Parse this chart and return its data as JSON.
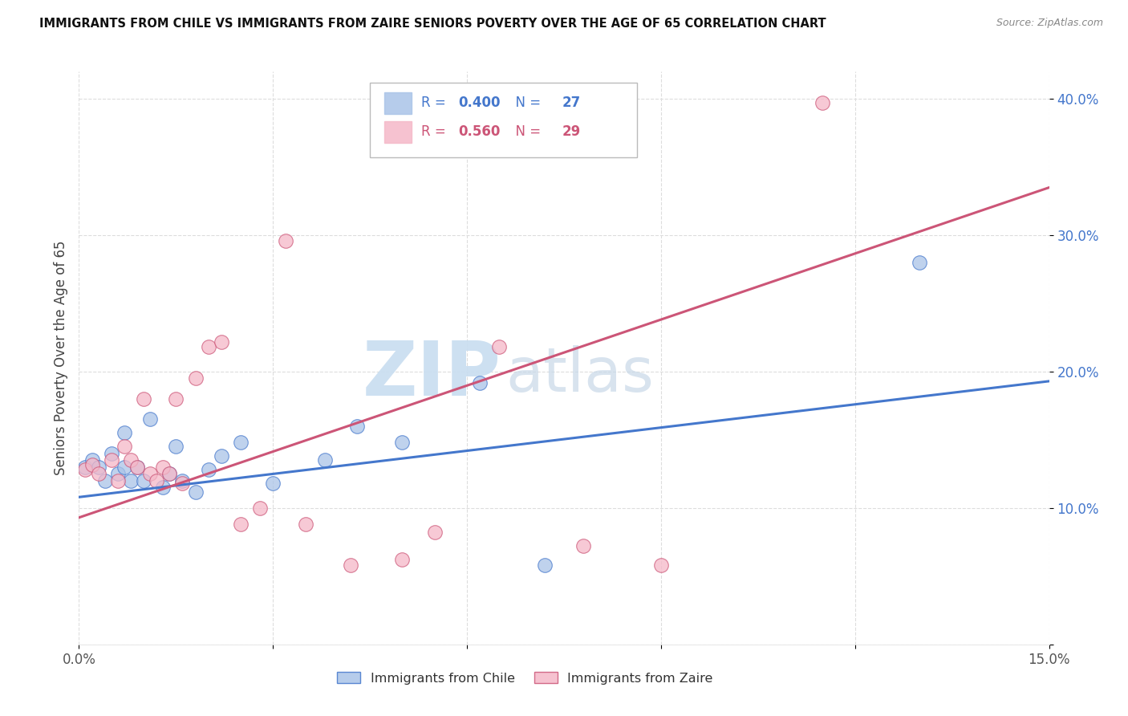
{
  "title": "IMMIGRANTS FROM CHILE VS IMMIGRANTS FROM ZAIRE SENIORS POVERTY OVER THE AGE OF 65 CORRELATION CHART",
  "source": "Source: ZipAtlas.com",
  "ylabel": "Seniors Poverty Over the Age of 65",
  "xlim": [
    0.0,
    0.15
  ],
  "ylim": [
    0.0,
    0.42
  ],
  "xticks": [
    0.0,
    0.03,
    0.06,
    0.09,
    0.12,
    0.15
  ],
  "yticks": [
    0.0,
    0.1,
    0.2,
    0.3,
    0.4
  ],
  "ytick_labels": [
    "",
    "10.0%",
    "20.0%",
    "30.0%",
    "40.0%"
  ],
  "xtick_labels": [
    "0.0%",
    "",
    "",
    "",
    "",
    "15.0%"
  ],
  "chile_R": 0.4,
  "chile_N": 27,
  "zaire_R": 0.56,
  "zaire_N": 29,
  "chile_color": "#aac4e8",
  "zaire_color": "#f5b8c8",
  "chile_line_color": "#4477cc",
  "zaire_line_color": "#cc5577",
  "watermark_zip": "ZIP",
  "watermark_atlas": "atlas",
  "chile_x": [
    0.001,
    0.002,
    0.003,
    0.004,
    0.005,
    0.006,
    0.007,
    0.007,
    0.008,
    0.009,
    0.01,
    0.011,
    0.013,
    0.014,
    0.015,
    0.016,
    0.018,
    0.02,
    0.022,
    0.025,
    0.03,
    0.038,
    0.043,
    0.05,
    0.062,
    0.072,
    0.13
  ],
  "chile_y": [
    0.13,
    0.135,
    0.13,
    0.12,
    0.14,
    0.125,
    0.155,
    0.13,
    0.12,
    0.13,
    0.12,
    0.165,
    0.115,
    0.125,
    0.145,
    0.12,
    0.112,
    0.128,
    0.138,
    0.148,
    0.118,
    0.135,
    0.16,
    0.148,
    0.192,
    0.058,
    0.28
  ],
  "zaire_x": [
    0.001,
    0.002,
    0.003,
    0.005,
    0.006,
    0.007,
    0.008,
    0.009,
    0.01,
    0.011,
    0.012,
    0.013,
    0.014,
    0.015,
    0.016,
    0.018,
    0.02,
    0.022,
    0.025,
    0.028,
    0.032,
    0.035,
    0.042,
    0.05,
    0.055,
    0.065,
    0.078,
    0.09,
    0.115
  ],
  "zaire_y": [
    0.128,
    0.132,
    0.125,
    0.135,
    0.12,
    0.145,
    0.135,
    0.13,
    0.18,
    0.125,
    0.12,
    0.13,
    0.125,
    0.18,
    0.118,
    0.195,
    0.218,
    0.222,
    0.088,
    0.1,
    0.296,
    0.088,
    0.058,
    0.062,
    0.082,
    0.218,
    0.072,
    0.058,
    0.397
  ],
  "chile_trend_x0": 0.0,
  "chile_trend_y0": 0.108,
  "chile_trend_x1": 0.15,
  "chile_trend_y1": 0.193,
  "zaire_trend_x0": 0.0,
  "zaire_trend_y0": 0.093,
  "zaire_trend_x1": 0.15,
  "zaire_trend_y1": 0.335
}
